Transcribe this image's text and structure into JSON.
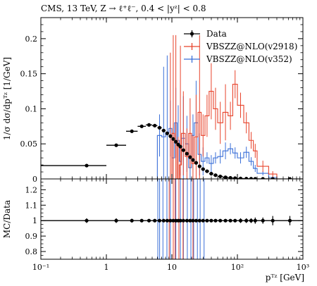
{
  "chart_data": {
    "type": "line",
    "title": "CMS, 13 TeV, Z → ℓ⁺ℓ⁻, 0.4 < |yᶻ| < 0.8",
    "xlabel": "pᵀᶻ [GeV]",
    "ylabel": "1/σ dσ/dpᵀᶻ [1/GeV]",
    "ratio_ylabel": "MC/Data",
    "x_scale": "log",
    "xlim": [
      0.1,
      1000
    ],
    "ylim": [
      0,
      0.23
    ],
    "ratio_ylim": [
      0.75,
      1.27
    ],
    "x_ticks": [
      {
        "value": 0.1,
        "label": "10⁻¹"
      },
      {
        "value": 1,
        "label": "1"
      },
      {
        "value": 10,
        "label": "10"
      },
      {
        "value": 100,
        "label": "10²"
      },
      {
        "value": 1000,
        "label": "10³"
      }
    ],
    "y_ticks": [
      {
        "value": 0,
        "label": "0"
      },
      {
        "value": 0.05,
        "label": "0.05"
      },
      {
        "value": 0.1,
        "label": "0.1"
      },
      {
        "value": 0.15,
        "label": "0.15"
      },
      {
        "value": 0.2,
        "label": "0.2"
      }
    ],
    "ratio_ticks": [
      {
        "value": 0.8,
        "label": "0.8"
      },
      {
        "value": 0.9,
        "label": "0.9"
      },
      {
        "value": 1.0,
        "label": "1"
      },
      {
        "value": 1.1,
        "label": "1.1"
      },
      {
        "value": 1.2,
        "label": "1.2"
      }
    ],
    "legend": {
      "position": "top-right",
      "entries": [
        {
          "label": "Data",
          "color": "#000000"
        },
        {
          "label": "VBSZZ@NLO(v2918)",
          "color": "#e8432b"
        },
        {
          "label": "VBSZZ@NLO(v352)",
          "color": "#3a6fd8"
        }
      ]
    },
    "series": [
      {
        "name": "Data",
        "color": "#000000",
        "points": [
          {
            "lo": 0,
            "hi": 1,
            "y": 0.019
          },
          {
            "lo": 1,
            "hi": 2,
            "y": 0.048
          },
          {
            "lo": 2,
            "hi": 3,
            "y": 0.068
          },
          {
            "lo": 3,
            "hi": 4,
            "y": 0.075
          },
          {
            "lo": 4,
            "hi": 5,
            "y": 0.077
          },
          {
            "lo": 5,
            "hi": 6,
            "y": 0.076
          },
          {
            "lo": 6,
            "hi": 7,
            "y": 0.073
          },
          {
            "lo": 7,
            "hi": 8,
            "y": 0.069
          },
          {
            "lo": 8,
            "hi": 9,
            "y": 0.065
          },
          {
            "lo": 9,
            "hi": 10,
            "y": 0.061
          },
          {
            "lo": 10,
            "hi": 11,
            "y": 0.057
          },
          {
            "lo": 11,
            "hi": 12,
            "y": 0.053
          },
          {
            "lo": 12,
            "hi": 13,
            "y": 0.049
          },
          {
            "lo": 13,
            "hi": 14,
            "y": 0.046
          },
          {
            "lo": 14,
            "hi": 16,
            "y": 0.041
          },
          {
            "lo": 16,
            "hi": 18,
            "y": 0.036
          },
          {
            "lo": 18,
            "hi": 20,
            "y": 0.031
          },
          {
            "lo": 20,
            "hi": 22,
            "y": 0.027
          },
          {
            "lo": 22,
            "hi": 25,
            "y": 0.023
          },
          {
            "lo": 25,
            "hi": 28,
            "y": 0.018
          },
          {
            "lo": 28,
            "hi": 32,
            "y": 0.014
          },
          {
            "lo": 32,
            "hi": 37,
            "y": 0.011
          },
          {
            "lo": 37,
            "hi": 43,
            "y": 0.0075
          },
          {
            "lo": 43,
            "hi": 50,
            "y": 0.0053
          },
          {
            "lo": 50,
            "hi": 60,
            "y": 0.0036
          },
          {
            "lo": 60,
            "hi": 72,
            "y": 0.0023
          },
          {
            "lo": 72,
            "hi": 85,
            "y": 0.0015
          },
          {
            "lo": 85,
            "hi": 100,
            "y": 0.001
          },
          {
            "lo": 100,
            "hi": 125,
            "y": 0.0006
          },
          {
            "lo": 125,
            "hi": 150,
            "y": 0.0004
          },
          {
            "lo": 150,
            "hi": 175,
            "y": 0.0003
          },
          {
            "lo": 175,
            "hi": 200,
            "y": 0.0002
          },
          {
            "lo": 200,
            "hi": 300,
            "y": 0.0001
          },
          {
            "lo": 300,
            "hi": 400,
            "y": 5e-05
          },
          {
            "lo": 400,
            "hi": 1000,
            "y": 2e-05
          }
        ]
      },
      {
        "name": "VBSZZ@NLO(v2918)",
        "color": "#e8432b",
        "bins": [
          {
            "lo": 9,
            "hi": 10,
            "y": 0.0,
            "err": 0.18
          },
          {
            "lo": 10,
            "hi": 11,
            "y": 0.065,
            "err": 0.14
          },
          {
            "lo": 11,
            "hi": 12,
            "y": 0.055,
            "err": 0.15
          },
          {
            "lo": 12,
            "hi": 13,
            "y": 0.0,
            "err": 0.06
          },
          {
            "lo": 13,
            "hi": 14,
            "y": 0.02,
            "err": 0.17
          },
          {
            "lo": 14,
            "hi": 16,
            "y": 0.065,
            "err": 0.06
          },
          {
            "lo": 16,
            "hi": 18,
            "y": 0.032,
            "err": 0.04
          },
          {
            "lo": 18,
            "hi": 20,
            "y": 0.065,
            "err": 0.05
          },
          {
            "lo": 20,
            "hi": 22,
            "y": 0.022,
            "err": 0.04
          },
          {
            "lo": 22,
            "hi": 25,
            "y": 0.06,
            "err": 0.06
          },
          {
            "lo": 25,
            "hi": 28,
            "y": 0.095,
            "err": 0.11
          },
          {
            "lo": 28,
            "hi": 32,
            "y": 0.062,
            "err": 0.03
          },
          {
            "lo": 32,
            "hi": 37,
            "y": 0.09,
            "err": 0.03
          },
          {
            "lo": 37,
            "hi": 43,
            "y": 0.125,
            "err": 0.04
          },
          {
            "lo": 43,
            "hi": 50,
            "y": 0.1,
            "err": 0.03
          },
          {
            "lo": 50,
            "hi": 60,
            "y": 0.08,
            "err": 0.03
          },
          {
            "lo": 60,
            "hi": 72,
            "y": 0.095,
            "err": 0.04
          },
          {
            "lo": 72,
            "hi": 85,
            "y": 0.09,
            "err": 0.02
          },
          {
            "lo": 85,
            "hi": 100,
            "y": 0.135,
            "err": 0.02
          },
          {
            "lo": 100,
            "hi": 125,
            "y": 0.105,
            "err": 0.018
          },
          {
            "lo": 125,
            "hi": 150,
            "y": 0.08,
            "err": 0.015
          },
          {
            "lo": 150,
            "hi": 175,
            "y": 0.055,
            "err": 0.012
          },
          {
            "lo": 175,
            "hi": 200,
            "y": 0.04,
            "err": 0.01
          },
          {
            "lo": 200,
            "hi": 300,
            "y": 0.018,
            "err": 0.008
          },
          {
            "lo": 300,
            "hi": 400,
            "y": 0.007,
            "err": 0.004
          }
        ]
      },
      {
        "name": "VBSZZ@NLO(v352)",
        "color": "#3a6fd8",
        "bins": [
          {
            "lo": 6,
            "hi": 7,
            "y": 0.062,
            "err": 0.03
          },
          {
            "lo": 7,
            "hi": 8,
            "y": 0.06,
            "err": 0.1
          },
          {
            "lo": 8,
            "hi": 9,
            "y": 0.066,
            "err": 0.11
          },
          {
            "lo": 9,
            "hi": 10,
            "y": 0.072,
            "err": 0.04
          },
          {
            "lo": 10,
            "hi": 11,
            "y": 0.03,
            "err": 0.05
          },
          {
            "lo": 11,
            "hi": 12,
            "y": 0.08,
            "err": 0.05
          },
          {
            "lo": 12,
            "hi": 13,
            "y": 0.055,
            "err": 0.05
          },
          {
            "lo": 13,
            "hi": 14,
            "y": 0.025,
            "err": 0.02
          },
          {
            "lo": 14,
            "hi": 16,
            "y": 0.058,
            "err": 0.06
          },
          {
            "lo": 16,
            "hi": 18,
            "y": 0.05,
            "err": 0.04
          },
          {
            "lo": 18,
            "hi": 20,
            "y": 0.016,
            "err": 0.02
          },
          {
            "lo": 20,
            "hi": 22,
            "y": 0.062,
            "err": 0.03
          },
          {
            "lo": 22,
            "hi": 25,
            "y": 0.08,
            "err": 0.06
          },
          {
            "lo": 25,
            "hi": 28,
            "y": 0.035,
            "err": 0.03
          },
          {
            "lo": 28,
            "hi": 32,
            "y": 0.025,
            "err": 0.02
          },
          {
            "lo": 32,
            "hi": 37,
            "y": 0.03,
            "err": 0.008
          },
          {
            "lo": 37,
            "hi": 43,
            "y": 0.022,
            "err": 0.012
          },
          {
            "lo": 43,
            "hi": 50,
            "y": 0.03,
            "err": 0.008
          },
          {
            "lo": 50,
            "hi": 60,
            "y": 0.032,
            "err": 0.01
          },
          {
            "lo": 60,
            "hi": 72,
            "y": 0.04,
            "err": 0.012
          },
          {
            "lo": 72,
            "hi": 85,
            "y": 0.043,
            "err": 0.008
          },
          {
            "lo": 85,
            "hi": 100,
            "y": 0.037,
            "err": 0.008
          },
          {
            "lo": 100,
            "hi": 125,
            "y": 0.03,
            "err": 0.008
          },
          {
            "lo": 125,
            "hi": 150,
            "y": 0.038,
            "err": 0.008
          },
          {
            "lo": 150,
            "hi": 175,
            "y": 0.025,
            "err": 0.006
          },
          {
            "lo": 175,
            "hi": 200,
            "y": 0.015,
            "err": 0.005
          },
          {
            "lo": 200,
            "hi": 300,
            "y": 0.008,
            "err": 0.003
          },
          {
            "lo": 300,
            "hi": 400,
            "y": 0.002,
            "err": 0.002
          }
        ]
      }
    ],
    "ratio": {
      "data_points": [
        {
          "lo": 0,
          "hi": 1,
          "y": 1.0,
          "err": 0.015
        },
        {
          "lo": 1,
          "hi": 2,
          "y": 1.0,
          "err": 0.015
        },
        {
          "lo": 2,
          "hi": 3,
          "y": 1.0,
          "err": 0.012
        },
        {
          "lo": 3,
          "hi": 4,
          "y": 1.0,
          "err": 0.01
        },
        {
          "lo": 4,
          "hi": 5,
          "y": 1.0,
          "err": 0.01
        },
        {
          "lo": 5,
          "hi": 6,
          "y": 1.0,
          "err": 0.01
        },
        {
          "lo": 6,
          "hi": 7,
          "y": 1.0,
          "err": 0.01
        },
        {
          "lo": 7,
          "hi": 8,
          "y": 1.0,
          "err": 0.01
        },
        {
          "lo": 8,
          "hi": 9,
          "y": 1.0,
          "err": 0.01
        },
        {
          "lo": 9,
          "hi": 10,
          "y": 1.0,
          "err": 0.01
        },
        {
          "lo": 10,
          "hi": 11,
          "y": 1.0,
          "err": 0.01
        },
        {
          "lo": 11,
          "hi": 12,
          "y": 1.0,
          "err": 0.01
        },
        {
          "lo": 12,
          "hi": 13,
          "y": 1.0,
          "err": 0.01
        },
        {
          "lo": 13,
          "hi": 14,
          "y": 1.0,
          "err": 0.01
        },
        {
          "lo": 14,
          "hi": 16,
          "y": 1.0,
          "err": 0.01
        },
        {
          "lo": 16,
          "hi": 18,
          "y": 1.0,
          "err": 0.01
        },
        {
          "lo": 18,
          "hi": 20,
          "y": 1.0,
          "err": 0.01
        },
        {
          "lo": 20,
          "hi": 22,
          "y": 1.0,
          "err": 0.01
        },
        {
          "lo": 22,
          "hi": 25,
          "y": 1.0,
          "err": 0.01
        },
        {
          "lo": 25,
          "hi": 28,
          "y": 1.0,
          "err": 0.01
        },
        {
          "lo": 28,
          "hi": 32,
          "y": 1.0,
          "err": 0.01
        },
        {
          "lo": 32,
          "hi": 37,
          "y": 1.0,
          "err": 0.01
        },
        {
          "lo": 37,
          "hi": 43,
          "y": 1.0,
          "err": 0.01
        },
        {
          "lo": 43,
          "hi": 50,
          "y": 1.0,
          "err": 0.01
        },
        {
          "lo": 50,
          "hi": 60,
          "y": 1.0,
          "err": 0.01
        },
        {
          "lo": 60,
          "hi": 72,
          "y": 1.0,
          "err": 0.01
        },
        {
          "lo": 72,
          "hi": 85,
          "y": 1.0,
          "err": 0.01
        },
        {
          "lo": 85,
          "hi": 100,
          "y": 1.0,
          "err": 0.01
        },
        {
          "lo": 100,
          "hi": 125,
          "y": 1.0,
          "err": 0.015
        },
        {
          "lo": 125,
          "hi": 150,
          "y": 1.0,
          "err": 0.015
        },
        {
          "lo": 150,
          "hi": 175,
          "y": 1.0,
          "err": 0.015
        },
        {
          "lo": 175,
          "hi": 200,
          "y": 1.0,
          "err": 0.02
        },
        {
          "lo": 200,
          "hi": 300,
          "y": 1.0,
          "err": 0.02
        },
        {
          "lo": 300,
          "hi": 400,
          "y": 1.0,
          "err": 0.03
        },
        {
          "lo": 400,
          "hi": 1000,
          "y": 1.0,
          "err": 0.03
        }
      ],
      "mc_spikes": [
        {
          "name": "v352",
          "color": "#3a6fd8",
          "x": [
            6.1,
            6.5,
            7.3,
            8.4,
            9.5,
            11.5,
            13.5,
            15,
            17.2,
            19.5,
            21.5,
            24.5,
            27,
            31
          ]
        },
        {
          "name": "v2918",
          "color": "#e8432b",
          "x": [
            9.1,
            10.5,
            11.2,
            12.8,
            14.8,
            21
          ]
        }
      ]
    }
  }
}
